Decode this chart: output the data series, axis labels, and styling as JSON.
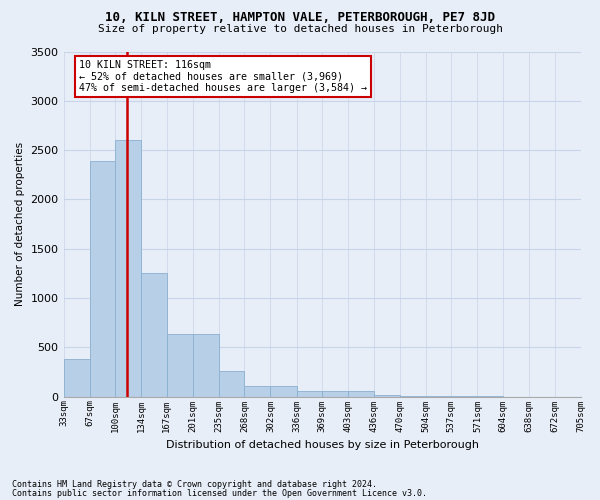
{
  "title1": "10, KILN STREET, HAMPTON VALE, PETERBOROUGH, PE7 8JD",
  "title2": "Size of property relative to detached houses in Peterborough",
  "xlabel": "Distribution of detached houses by size in Peterborough",
  "ylabel": "Number of detached properties",
  "footer1": "Contains HM Land Registry data © Crown copyright and database right 2024.",
  "footer2": "Contains public sector information licensed under the Open Government Licence v3.0.",
  "annotation_line1": "10 KILN STREET: 116sqm",
  "annotation_line2": "← 52% of detached houses are smaller (3,969)",
  "annotation_line3": "47% of semi-detached houses are larger (3,584) →",
  "bar_edges": [
    33,
    67,
    100,
    134,
    167,
    201,
    235,
    268,
    302,
    336,
    369,
    403,
    436,
    470,
    504,
    537,
    571,
    604,
    638,
    672,
    705
  ],
  "bar_heights": [
    380,
    2390,
    2600,
    1250,
    640,
    640,
    260,
    110,
    110,
    55,
    55,
    55,
    20,
    5,
    5,
    3,
    2,
    1,
    1,
    1
  ],
  "bar_color": "#b8cfe8",
  "bar_edge_color": "#8ab0d0",
  "vline_color": "#cc0000",
  "vline_x": 116,
  "annotation_box_color": "#cc0000",
  "grid_color": "#c8d4e8",
  "background_color": "#e8eef8",
  "ylim": [
    0,
    3500
  ],
  "yticks": [
    0,
    500,
    1000,
    1500,
    2000,
    2500,
    3000,
    3500
  ]
}
